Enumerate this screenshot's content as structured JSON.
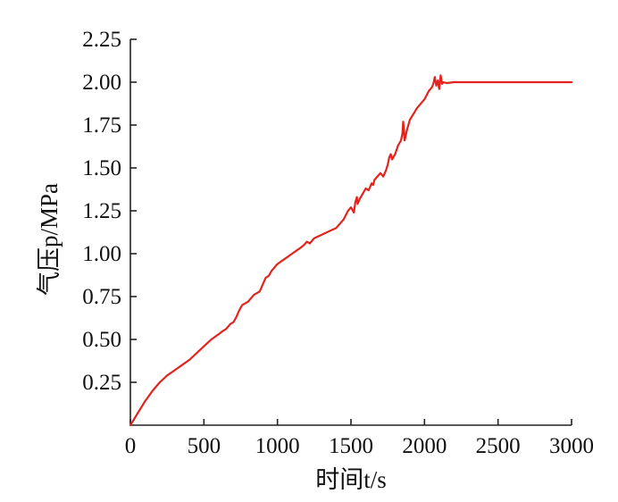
{
  "chart_data": {
    "type": "line",
    "title": "",
    "xlabel": "时间t/s",
    "ylabel": "气压p/MPa",
    "xlim": [
      0,
      3000
    ],
    "ylim": [
      0,
      2.25
    ],
    "xticks": [
      0,
      500,
      1000,
      1500,
      2000,
      2500,
      3000
    ],
    "xtick_labels": [
      "0",
      "500",
      "1000",
      "1500",
      "2000",
      "2500",
      "3000"
    ],
    "yticks": [
      0.25,
      0.5,
      0.75,
      1.0,
      1.25,
      1.5,
      1.75,
      2.0,
      2.25
    ],
    "ytick_labels": [
      "0.25",
      "0.50",
      "0.75",
      "1.00",
      "1.25",
      "1.50",
      "1.75",
      "2.00",
      "2.25"
    ],
    "grid": false,
    "legend": "none",
    "series": [
      {
        "color": "#e3231d",
        "x": [
          0,
          50,
          100,
          150,
          200,
          250,
          300,
          350,
          400,
          450,
          500,
          550,
          600,
          630,
          650,
          680,
          700,
          720,
          740,
          760,
          800,
          820,
          840,
          860,
          880,
          900,
          920,
          940,
          960,
          980,
          1000,
          1050,
          1100,
          1150,
          1180,
          1200,
          1220,
          1250,
          1300,
          1350,
          1400,
          1450,
          1480,
          1500,
          1520,
          1530,
          1540,
          1545,
          1560,
          1580,
          1600,
          1620,
          1640,
          1650,
          1660,
          1680,
          1700,
          1720,
          1740,
          1750,
          1760,
          1770,
          1780,
          1800,
          1820,
          1840,
          1850,
          1855,
          1860,
          1865,
          1880,
          1900,
          1950,
          2000,
          2030,
          2050,
          2060,
          2070,
          2080,
          2090,
          2100,
          2110,
          2120,
          2130,
          2150,
          2200,
          2300,
          2500,
          2700,
          3000
        ],
        "y": [
          0.0,
          0.07,
          0.14,
          0.2,
          0.25,
          0.29,
          0.32,
          0.35,
          0.38,
          0.42,
          0.46,
          0.5,
          0.53,
          0.55,
          0.56,
          0.59,
          0.6,
          0.63,
          0.67,
          0.7,
          0.72,
          0.74,
          0.76,
          0.77,
          0.78,
          0.82,
          0.86,
          0.87,
          0.9,
          0.92,
          0.94,
          0.97,
          1.0,
          1.03,
          1.05,
          1.07,
          1.06,
          1.09,
          1.11,
          1.13,
          1.15,
          1.2,
          1.25,
          1.27,
          1.24,
          1.3,
          1.33,
          1.29,
          1.32,
          1.35,
          1.38,
          1.37,
          1.41,
          1.4,
          1.43,
          1.45,
          1.47,
          1.45,
          1.49,
          1.52,
          1.56,
          1.58,
          1.55,
          1.58,
          1.63,
          1.66,
          1.7,
          1.77,
          1.72,
          1.66,
          1.72,
          1.78,
          1.85,
          1.9,
          1.95,
          1.97,
          1.99,
          2.03,
          1.98,
          2.01,
          1.96,
          2.04,
          1.99,
          2.0,
          1.995,
          2.0,
          2.0,
          2.0,
          2.0,
          2.0
        ]
      }
    ]
  }
}
